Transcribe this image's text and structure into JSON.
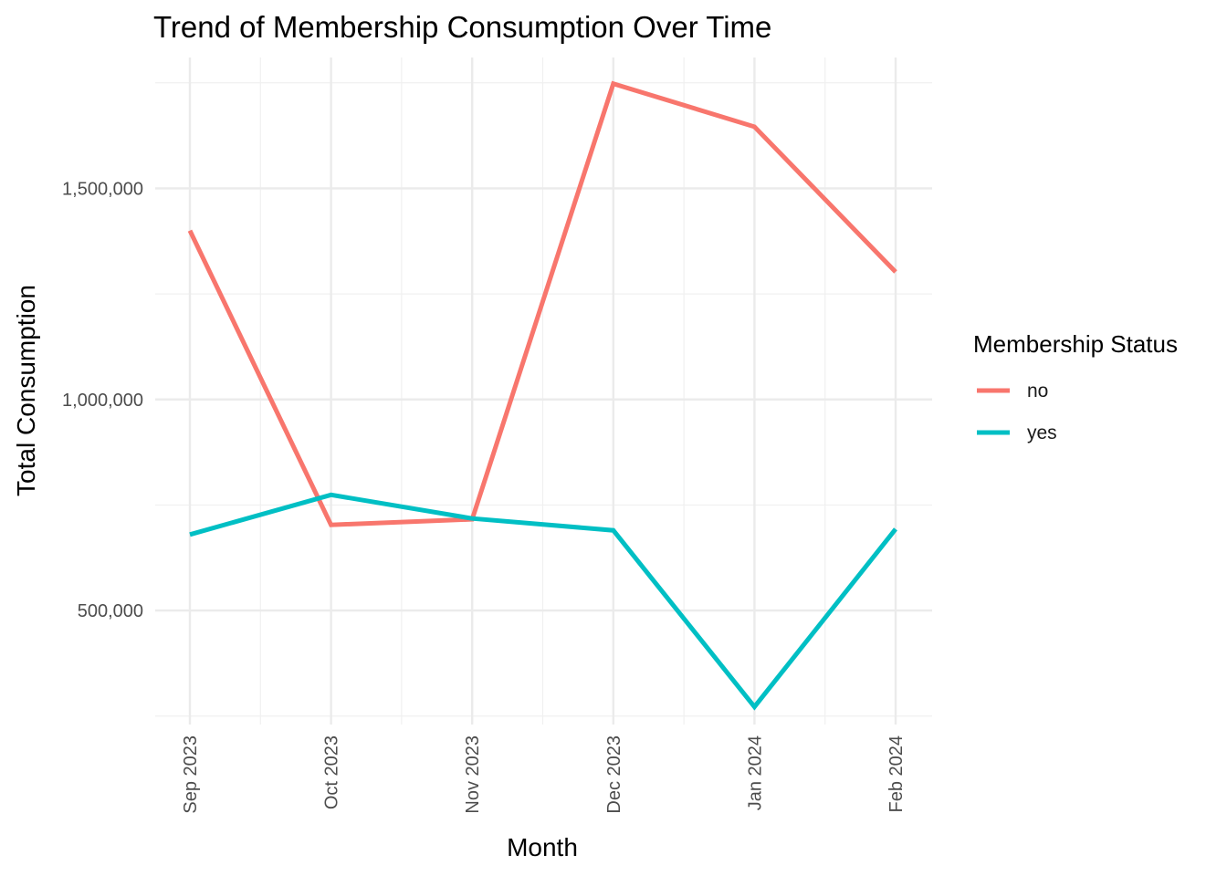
{
  "chart_data": {
    "type": "line",
    "title": "Trend of Membership Consumption Over Time",
    "xlabel": "Month",
    "ylabel": "Total Consumption",
    "x": [
      "Sep 2023",
      "Oct 2023",
      "Nov 2023",
      "Dec 2023",
      "Jan 2024",
      "Feb 2024"
    ],
    "yticks": [
      500000,
      1000000,
      1500000
    ],
    "ytick_labels": [
      "500,000",
      "1,000,000",
      "1,500,000"
    ],
    "ylim": [
      230000,
      1810000
    ],
    "grid": true,
    "legend": {
      "title": "Membership Status",
      "position": "right"
    },
    "series": [
      {
        "name": "no",
        "color": "#F8766D",
        "values": [
          1400000,
          703000,
          716000,
          1748000,
          1646000,
          1302000
        ]
      },
      {
        "name": "yes",
        "color": "#00BFC4",
        "values": [
          680000,
          774000,
          718000,
          690000,
          272000,
          693000
        ]
      }
    ]
  }
}
